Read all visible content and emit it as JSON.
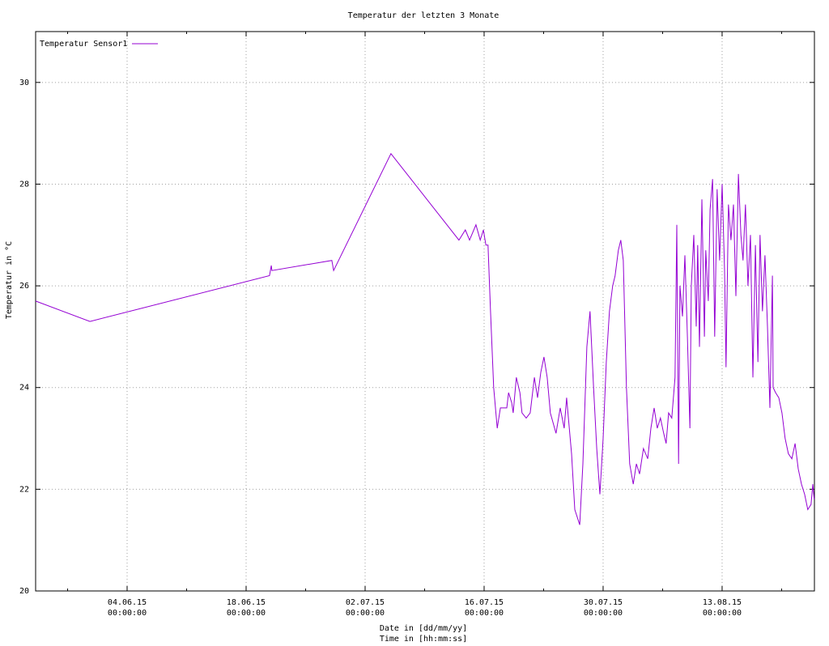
{
  "chart_data": {
    "type": "line",
    "title": "Temperatur der letzten 3 Monate",
    "ylabel": "Temperatur in °C",
    "xlabel": [
      "Date in [dd/mm/yy]",
      "Time in [hh:mm:ss]"
    ],
    "legend": "top-left",
    "grid": true,
    "ylim": [
      20,
      31
    ],
    "yticks": [
      20,
      22,
      24,
      26,
      28,
      30
    ],
    "xlim": [
      "2015-05-24T05:40",
      "2015-08-23T20:40"
    ],
    "xticks": [
      {
        "value": "2015-06-04T00:00",
        "label": [
          "04.06.15",
          "00:00:00"
        ]
      },
      {
        "value": "2015-06-18T00:00",
        "label": [
          "18.06.15",
          "00:00:00"
        ]
      },
      {
        "value": "2015-07-02T00:00",
        "label": [
          "02.07.15",
          "00:00:00"
        ]
      },
      {
        "value": "2015-07-16T00:00",
        "label": [
          "16.07.15",
          "00:00:00"
        ]
      },
      {
        "value": "2015-07-30T00:00",
        "label": [
          "30.07.15",
          "00:00:00"
        ]
      },
      {
        "value": "2015-08-13T00:00",
        "label": [
          "13.08.15",
          "00:00:00"
        ]
      }
    ],
    "xminorticks": [
      "2015-05-28T00:00",
      "2015-06-11T00:00",
      "2015-06-25T00:00",
      "2015-07-09T00:00",
      "2015-07-23T00:00",
      "2015-08-06T00:00",
      "2015-08-20T00:00"
    ],
    "x": [
      "2015-05-24T05:40",
      "2015-05-30T15:00",
      "2015-06-20T18:00",
      "2015-06-20T23:00",
      "2015-06-21T01:00",
      "2015-06-28T02:00",
      "2015-06-28T07:00",
      "2015-07-05T01:00",
      "2015-07-13T01:00",
      "2015-07-13T19:00",
      "2015-07-14T07:00",
      "2015-07-15T01:00",
      "2015-07-15T13:00",
      "2015-07-15T22:00",
      "2015-07-16T05:00",
      "2015-07-16T11:00",
      "2015-07-16T18:00",
      "2015-07-17T03:00",
      "2015-07-17T13:00",
      "2015-07-17T22:00",
      "2015-07-18T16:00",
      "2015-07-18T21:00",
      "2015-07-19T06:00",
      "2015-07-19T10:00",
      "2015-07-19T19:00",
      "2015-07-20T05:00",
      "2015-07-20T11:00",
      "2015-07-20T23:00",
      "2015-07-21T10:00",
      "2015-07-21T22:00",
      "2015-07-22T07:00",
      "2015-07-22T16:00",
      "2015-07-23T01:00",
      "2015-07-23T10:00",
      "2015-07-23T19:00",
      "2015-07-24T11:00",
      "2015-07-24T23:00",
      "2015-07-25T10:00",
      "2015-07-25T17:00",
      "2015-07-26T07:00",
      "2015-07-26T16:00",
      "2015-07-27T06:00",
      "2015-07-27T15:00",
      "2015-07-28T02:00",
      "2015-07-28T11:00",
      "2015-07-28T21:00",
      "2015-07-29T06:00",
      "2015-07-29T15:00",
      "2015-07-30T00:00",
      "2015-07-30T09:00",
      "2015-07-30T18:00",
      "2015-07-31T03:00",
      "2015-07-31T10:00",
      "2015-07-31T19:00",
      "2015-08-01T02:00",
      "2015-08-01T09:00",
      "2015-08-01T18:00",
      "2015-08-02T03:00",
      "2015-08-02T13:00",
      "2015-08-02T22:00",
      "2015-08-03T07:00",
      "2015-08-03T18:00",
      "2015-08-04T06:00",
      "2015-08-04T15:00",
      "2015-08-05T00:00",
      "2015-08-05T09:00",
      "2015-08-05T18:00",
      "2015-08-06T03:00",
      "2015-08-06T10:00",
      "2015-08-06T17:00",
      "2015-08-07T02:00",
      "2015-08-07T11:00",
      "2015-08-07T16:00",
      "2015-08-07T21:00",
      "2015-08-08T01:00",
      "2015-08-08T08:00",
      "2015-08-08T15:00",
      "2015-08-08T22:00",
      "2015-08-09T05:00",
      "2015-08-09T09:00",
      "2015-08-09T16:00",
      "2015-08-09T23:00",
      "2015-08-10T03:00",
      "2015-08-10T08:00",
      "2015-08-10T15:00",
      "2015-08-10T22:00",
      "2015-08-11T02:00",
      "2015-08-11T09:00",
      "2015-08-11T14:00",
      "2015-08-11T21:00",
      "2015-08-12T03:00",
      "2015-08-12T10:00",
      "2015-08-12T17:00",
      "2015-08-13T00:00",
      "2015-08-13T07:00",
      "2015-08-13T11:00",
      "2015-08-13T18:00",
      "2015-08-14T01:00",
      "2015-08-14T08:00",
      "2015-08-14T15:00",
      "2015-08-14T22:00",
      "2015-08-15T05:00",
      "2015-08-15T11:00",
      "2015-08-15T18:00",
      "2015-08-16T01:00",
      "2015-08-16T08:00",
      "2015-08-16T15:00",
      "2015-08-16T22:00",
      "2015-08-17T05:00",
      "2015-08-17T11:00",
      "2015-08-17T18:00",
      "2015-08-18T01:00",
      "2015-08-18T08:00",
      "2015-08-18T15:00",
      "2015-08-18T22:00",
      "2015-08-19T00:00",
      "2015-08-19T07:00",
      "2015-08-19T16:00",
      "2015-08-20T01:00",
      "2015-08-20T10:00",
      "2015-08-20T19:00",
      "2015-08-21T05:00",
      "2015-08-21T14:00",
      "2015-08-21T23:00",
      "2015-08-22T08:00",
      "2015-08-22T17:00",
      "2015-08-23T02:00",
      "2015-08-23T11:00",
      "2015-08-23T16:00",
      "2015-08-23T20:00"
    ],
    "series": [
      {
        "name": "Temperatur Sensor1",
        "color": "#9400d3",
        "values": [
          25.7,
          25.3,
          26.2,
          26.4,
          26.3,
          26.5,
          26.3,
          28.6,
          26.9,
          27.1,
          26.9,
          27.2,
          26.9,
          27.1,
          26.8,
          26.8,
          25.5,
          24.0,
          23.2,
          23.6,
          23.6,
          23.9,
          23.7,
          23.5,
          24.2,
          23.9,
          23.5,
          23.4,
          23.5,
          24.2,
          23.8,
          24.3,
          24.6,
          24.2,
          23.5,
          23.1,
          23.6,
          23.2,
          23.8,
          22.7,
          21.6,
          21.3,
          22.5,
          24.8,
          25.5,
          24.0,
          22.8,
          21.9,
          23.0,
          24.5,
          25.5,
          26.0,
          26.2,
          26.7,
          26.9,
          26.5,
          24.0,
          22.5,
          22.1,
          22.5,
          22.3,
          22.8,
          22.6,
          23.2,
          23.6,
          23.2,
          23.4,
          23.1,
          22.9,
          23.5,
          23.4,
          24.2,
          27.2,
          22.5,
          26.0,
          25.4,
          26.6,
          25.0,
          23.2,
          26.0,
          27.0,
          25.2,
          26.8,
          24.8,
          27.7,
          25.0,
          26.7,
          25.7,
          27.5,
          28.1,
          25.0,
          27.9,
          26.5,
          28.0,
          26.3,
          24.4,
          27.6,
          26.9,
          27.6,
          25.8,
          28.2,
          27.0,
          26.5,
          27.6,
          26.0,
          27.0,
          24.2,
          26.8,
          24.5,
          27.0,
          25.5,
          26.6,
          25.2,
          23.6,
          26.2,
          24.0,
          23.9,
          23.8,
          23.5,
          23.0,
          22.7,
          22.6,
          22.9,
          22.4,
          22.1,
          21.9,
          21.6,
          21.7,
          22.1,
          21.8
        ]
      }
    ]
  }
}
